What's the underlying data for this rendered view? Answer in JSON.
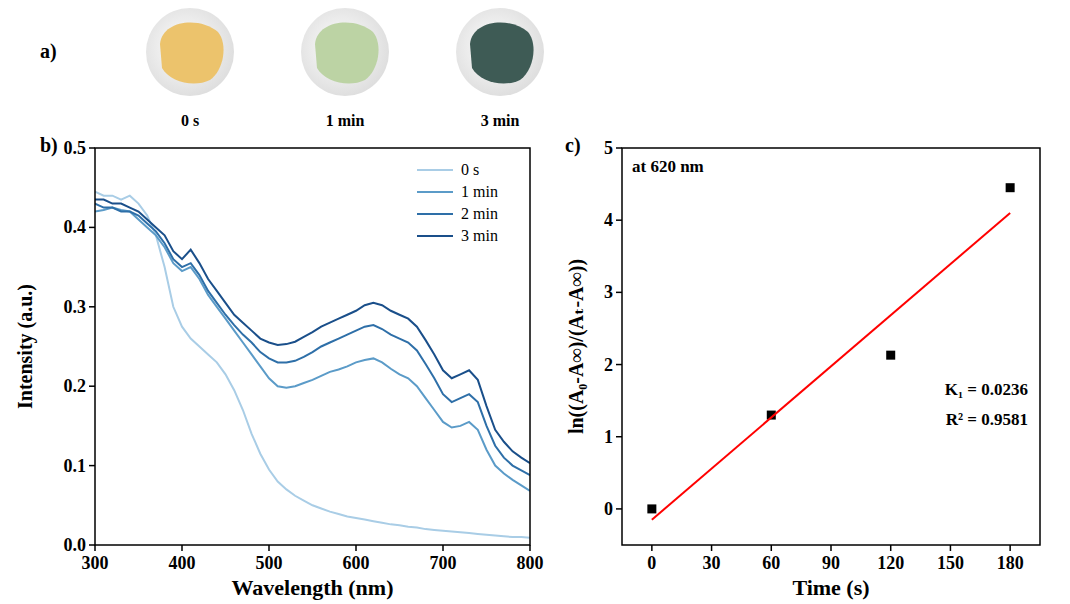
{
  "photos": {
    "panel_label": "a)",
    "items": [
      {
        "caption": "0 s",
        "color": "#ecc36c"
      },
      {
        "caption": "1 min",
        "color": "#bcd3a4"
      },
      {
        "caption": "3 min",
        "color": "#3e5b55"
      }
    ]
  },
  "chart_data": [
    {
      "type": "line",
      "panel_label": "b)",
      "x_label": "Wavelength (nm)",
      "y_label": "Intensity (a.u.)",
      "x": [
        300,
        310,
        320,
        330,
        340,
        350,
        360,
        370,
        380,
        390,
        400,
        410,
        420,
        430,
        440,
        450,
        460,
        470,
        480,
        490,
        500,
        510,
        520,
        530,
        540,
        550,
        560,
        570,
        580,
        590,
        600,
        610,
        620,
        630,
        640,
        650,
        660,
        670,
        680,
        690,
        700,
        710,
        720,
        730,
        740,
        750,
        760,
        770,
        780,
        790,
        800
      ],
      "series": [
        {
          "name": "0 s",
          "color": "#a9cde6",
          "values": [
            0.445,
            0.44,
            0.44,
            0.435,
            0.44,
            0.43,
            0.415,
            0.39,
            0.35,
            0.3,
            0.275,
            0.26,
            0.25,
            0.24,
            0.23,
            0.215,
            0.195,
            0.17,
            0.14,
            0.115,
            0.095,
            0.08,
            0.07,
            0.062,
            0.056,
            0.05,
            0.046,
            0.042,
            0.039,
            0.036,
            0.034,
            0.032,
            0.03,
            0.028,
            0.026,
            0.025,
            0.023,
            0.022,
            0.02,
            0.019,
            0.018,
            0.017,
            0.016,
            0.015,
            0.014,
            0.013,
            0.012,
            0.011,
            0.01,
            0.01,
            0.009
          ]
        },
        {
          "name": "1 min",
          "color": "#5b9bc8",
          "values": [
            0.42,
            0.422,
            0.425,
            0.422,
            0.42,
            0.41,
            0.4,
            0.39,
            0.375,
            0.355,
            0.345,
            0.35,
            0.335,
            0.315,
            0.3,
            0.285,
            0.27,
            0.255,
            0.24,
            0.225,
            0.21,
            0.2,
            0.198,
            0.2,
            0.204,
            0.208,
            0.213,
            0.218,
            0.221,
            0.225,
            0.23,
            0.233,
            0.235,
            0.23,
            0.222,
            0.215,
            0.21,
            0.2,
            0.185,
            0.17,
            0.155,
            0.148,
            0.15,
            0.155,
            0.145,
            0.12,
            0.1,
            0.09,
            0.082,
            0.075,
            0.068
          ]
        },
        {
          "name": "2 min",
          "color": "#2e6fa8",
          "values": [
            0.43,
            0.425,
            0.425,
            0.42,
            0.42,
            0.415,
            0.405,
            0.395,
            0.38,
            0.36,
            0.35,
            0.355,
            0.34,
            0.32,
            0.305,
            0.29,
            0.277,
            0.265,
            0.255,
            0.243,
            0.235,
            0.23,
            0.23,
            0.232,
            0.237,
            0.243,
            0.25,
            0.255,
            0.26,
            0.265,
            0.27,
            0.275,
            0.277,
            0.272,
            0.265,
            0.26,
            0.255,
            0.245,
            0.228,
            0.21,
            0.19,
            0.18,
            0.185,
            0.19,
            0.18,
            0.15,
            0.125,
            0.11,
            0.1,
            0.094,
            0.088
          ]
        },
        {
          "name": "3 min",
          "color": "#1a4f8a",
          "values": [
            0.435,
            0.435,
            0.43,
            0.43,
            0.425,
            0.42,
            0.41,
            0.4,
            0.39,
            0.37,
            0.36,
            0.372,
            0.355,
            0.335,
            0.32,
            0.305,
            0.29,
            0.28,
            0.27,
            0.26,
            0.255,
            0.252,
            0.253,
            0.256,
            0.262,
            0.268,
            0.275,
            0.28,
            0.285,
            0.29,
            0.295,
            0.302,
            0.305,
            0.302,
            0.295,
            0.29,
            0.285,
            0.275,
            0.258,
            0.24,
            0.22,
            0.21,
            0.215,
            0.22,
            0.208,
            0.175,
            0.145,
            0.13,
            0.118,
            0.11,
            0.103
          ]
        }
      ],
      "xlim": [
        300,
        800
      ],
      "xticks": [
        300,
        400,
        500,
        600,
        700,
        800
      ],
      "ylim": [
        0,
        0.5
      ],
      "yticks": [
        {
          "value": 0,
          "label": "0.0"
        },
        0.1,
        0.2,
        0.3,
        0.4,
        0.5
      ],
      "grid": false,
      "legend": "upper right"
    },
    {
      "type": "scatter",
      "panel_label": "c)",
      "x_label": "Time (s)",
      "y_label": "ln((A₀-A∞)/(Aₜ-A∞))",
      "annotations": [
        "at 620 nm",
        "K₁ = 0.0236",
        "R² = 0.9581"
      ],
      "series": [
        {
          "type": "scatter",
          "marker": "square",
          "color": "#000000",
          "x": [
            0,
            60,
            120,
            180
          ],
          "values": [
            0,
            1.3,
            2.13,
            4.45
          ]
        },
        {
          "type": "line",
          "line_style": "solid",
          "color": "#ff0000",
          "x": [
            0,
            180
          ],
          "values": [
            -0.15,
            4.1
          ]
        }
      ],
      "xlim": [
        -15,
        195
      ],
      "xticks": [
        0,
        30,
        60,
        90,
        120,
        150,
        180
      ],
      "ylim": [
        -0.5,
        5
      ],
      "yticks": [
        0,
        1,
        2,
        3,
        4,
        5
      ],
      "grid": false
    }
  ]
}
